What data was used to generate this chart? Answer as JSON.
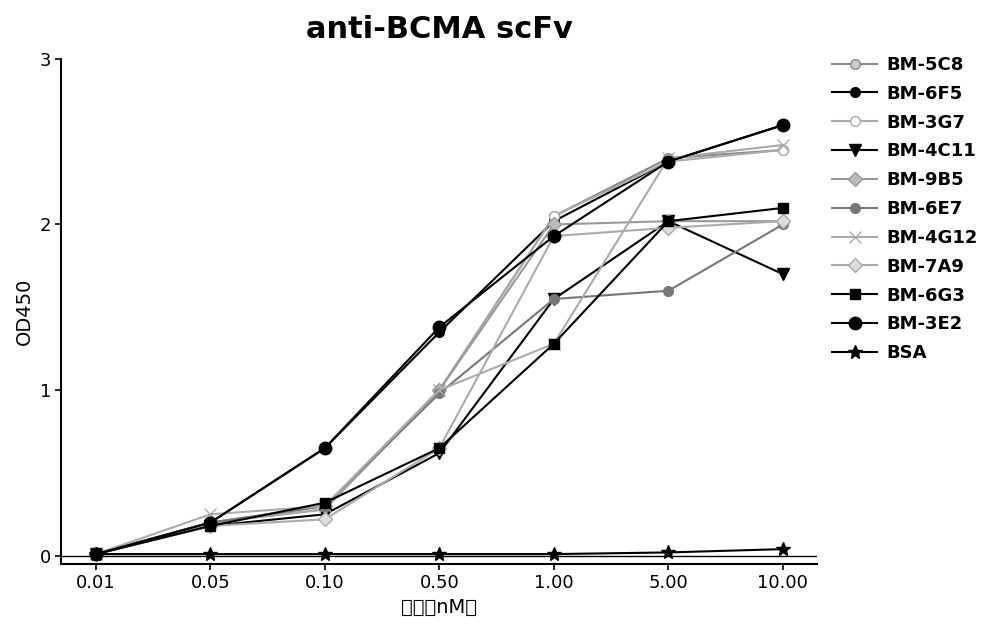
{
  "title": "anti-BCMA scFv",
  "xlabel": "浓度（nM）",
  "ylabel": "OD450",
  "x_values": [
    0.01,
    0.05,
    0.1,
    0.5,
    1.0,
    5.0,
    10.0
  ],
  "x_labels": [
    "0.01",
    "0.05",
    "0.10",
    "0.50",
    "1.00",
    "5.00",
    "10.00"
  ],
  "ylim": [
    -0.05,
    3.0
  ],
  "yticks": [
    0,
    1,
    2,
    3
  ],
  "series": [
    {
      "name": "BM-5C8",
      "color": "#888888",
      "marker": "o",
      "markerfacecolor": "#cccccc",
      "markeredgecolor": "#888888",
      "linewidth": 1.5,
      "markersize": 7,
      "values": [
        0.01,
        0.2,
        0.28,
        1.0,
        2.05,
        2.4,
        2.45
      ]
    },
    {
      "name": "BM-6F5",
      "color": "#000000",
      "marker": "o",
      "markerfacecolor": "#000000",
      "markeredgecolor": "#000000",
      "linewidth": 1.5,
      "markersize": 7,
      "values": [
        0.01,
        0.2,
        0.65,
        1.35,
        2.02,
        2.38,
        2.6
      ]
    },
    {
      "name": "BM-3G7",
      "color": "#aaaaaa",
      "marker": "o",
      "markerfacecolor": "#ffffff",
      "markeredgecolor": "#aaaaaa",
      "linewidth": 1.5,
      "markersize": 7,
      "values": [
        0.01,
        0.2,
        0.28,
        1.0,
        2.05,
        2.38,
        2.45
      ]
    },
    {
      "name": "BM-4C11",
      "color": "#000000",
      "marker": "v",
      "markerfacecolor": "#000000",
      "markeredgecolor": "#000000",
      "linewidth": 1.5,
      "markersize": 8,
      "values": [
        0.01,
        0.18,
        0.25,
        0.62,
        1.55,
        2.02,
        1.7
      ]
    },
    {
      "name": "BM-9B5",
      "color": "#999999",
      "marker": "D",
      "markerfacecolor": "#bbbbbb",
      "markeredgecolor": "#999999",
      "linewidth": 1.5,
      "markersize": 7,
      "values": [
        0.01,
        0.2,
        0.3,
        1.0,
        2.0,
        2.02,
        2.02
      ]
    },
    {
      "name": "BM-6E7",
      "color": "#777777",
      "marker": "o",
      "markerfacecolor": "#777777",
      "markeredgecolor": "#777777",
      "linewidth": 1.5,
      "markersize": 7,
      "values": [
        0.01,
        0.2,
        0.3,
        0.98,
        1.55,
        1.6,
        2.0
      ]
    },
    {
      "name": "BM-4G12",
      "color": "#aaaaaa",
      "marker": "x",
      "markerfacecolor": "#aaaaaa",
      "markeredgecolor": "#aaaaaa",
      "linewidth": 1.5,
      "markersize": 9,
      "values": [
        0.01,
        0.25,
        0.3,
        1.0,
        1.28,
        2.4,
        2.48
      ]
    },
    {
      "name": "BM-7A9",
      "color": "#aaaaaa",
      "marker": "D",
      "markerfacecolor": "#dddddd",
      "markeredgecolor": "#aaaaaa",
      "linewidth": 1.5,
      "markersize": 7,
      "values": [
        0.01,
        0.18,
        0.22,
        0.65,
        1.93,
        1.98,
        2.02
      ]
    },
    {
      "name": "BM-6G3",
      "color": "#000000",
      "marker": "s",
      "markerfacecolor": "#000000",
      "markeredgecolor": "#000000",
      "linewidth": 1.5,
      "markersize": 7,
      "values": [
        0.01,
        0.18,
        0.32,
        0.65,
        1.28,
        2.02,
        2.1
      ]
    },
    {
      "name": "BM-3E2",
      "color": "#000000",
      "marker": "o",
      "markerfacecolor": "#000000",
      "markeredgecolor": "#000000",
      "linewidth": 1.5,
      "markersize": 9,
      "values": [
        0.01,
        0.2,
        0.65,
        1.38,
        1.93,
        2.38,
        2.6
      ]
    },
    {
      "name": "BSA",
      "color": "#000000",
      "marker": "*",
      "markerfacecolor": "#000000",
      "markeredgecolor": "#000000",
      "linewidth": 1.5,
      "markersize": 10,
      "values": [
        0.01,
        0.01,
        0.01,
        0.01,
        0.01,
        0.02,
        0.04
      ]
    }
  ],
  "background_color": "#ffffff",
  "title_fontsize": 22,
  "label_fontsize": 14,
  "tick_fontsize": 13,
  "legend_fontsize": 13
}
